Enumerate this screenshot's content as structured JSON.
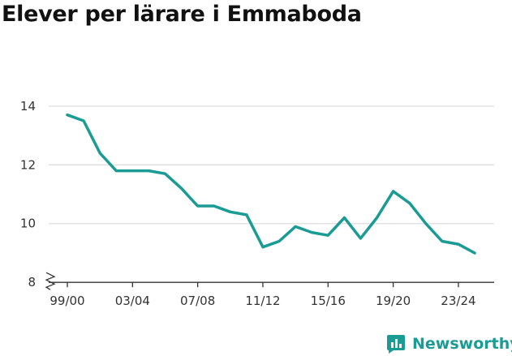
{
  "chart_data": {
    "type": "line",
    "title": "Elever per lärare i Emmaboda",
    "x": [
      "99/00",
      "00/01",
      "01/02",
      "02/03",
      "03/04",
      "04/05",
      "05/06",
      "06/07",
      "07/08",
      "08/09",
      "09/10",
      "10/11",
      "11/12",
      "12/13",
      "13/14",
      "14/15",
      "15/16",
      "16/17",
      "17/18",
      "18/19",
      "19/20",
      "20/21",
      "21/22",
      "22/23",
      "23/24",
      "24/25"
    ],
    "x_tick_labels": [
      "99/00",
      "03/04",
      "07/08",
      "11/12",
      "15/16",
      "19/20",
      "23/24"
    ],
    "series": [
      {
        "values": [
          13.7,
          13.5,
          12.4,
          11.8,
          11.8,
          11.8,
          11.7,
          11.2,
          10.6,
          10.6,
          10.4,
          10.3,
          9.2,
          9.4,
          9.9,
          9.7,
          9.6,
          10.2,
          9.5,
          10.2,
          11.1,
          10.7,
          10.0,
          9.4,
          9.3,
          9.0
        ]
      }
    ],
    "y_ticks": [
      8,
      10,
      12,
      14
    ],
    "ylim": [
      7.95,
      14.3
    ],
    "y_axis_break": true,
    "grid": true,
    "line_color": "#1a9b94"
  },
  "brand": {
    "name": "Newsworthy",
    "icon": "newsworthy-logo-icon",
    "color": "#1a9b94"
  }
}
